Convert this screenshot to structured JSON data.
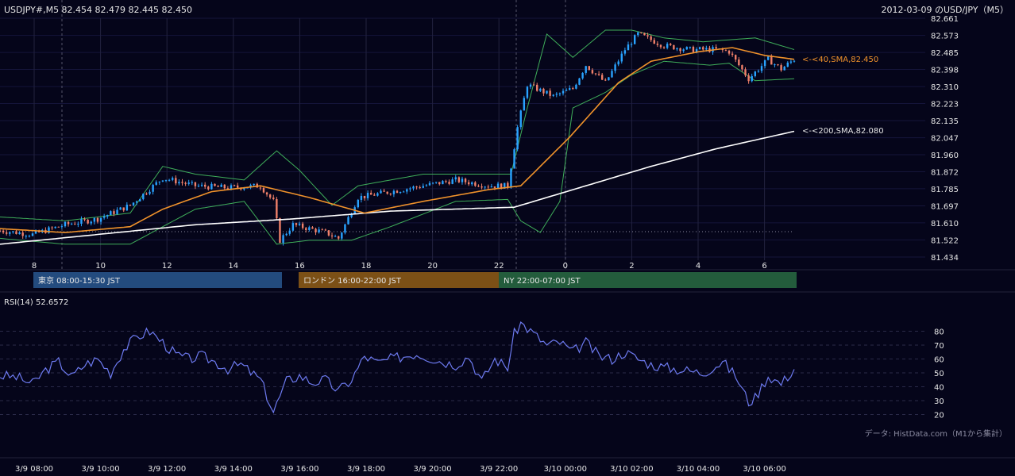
{
  "chart_data": [
    {
      "type": "candlestick",
      "header_left": "USDJPY#,M5 82.454 82.479 82.445 82.450",
      "header_right": "2012-03-09 のUSD/JPY（M5）",
      "ylim": [
        81.434,
        82.661
      ],
      "y_ticks": [
        "82.661",
        "82.573",
        "82.485",
        "82.398",
        "82.310",
        "82.223",
        "82.135",
        "82.047",
        "81.960",
        "81.872",
        "81.785",
        "81.697",
        "81.610",
        "81.522",
        "81.434"
      ],
      "x_ticks": [
        "8",
        "10",
        "12",
        "14",
        "16",
        "18",
        "20",
        "22",
        "0",
        "2",
        "4",
        "6"
      ],
      "series": [
        {
          "name": "40,SMA",
          "label": "<-<40,SMA,82.450",
          "color": "#f0922b"
        },
        {
          "name": "200,SMA",
          "label": "<-<200,SMA,82.080",
          "color": "#ffffff"
        }
      ],
      "bollinger_color": "#3fae5a",
      "candle_up_color": "#29a3ff",
      "candle_down_color": "#f0806a",
      "keypoints": {
        "price": [
          [
            0,
            81.57
          ],
          [
            10,
            81.55
          ],
          [
            20,
            81.6
          ],
          [
            30,
            81.63
          ],
          [
            40,
            81.7
          ],
          [
            50,
            81.84
          ],
          [
            60,
            81.8
          ],
          [
            70,
            81.79
          ],
          [
            80,
            81.8
          ],
          [
            84,
            81.72
          ],
          [
            86,
            81.52
          ],
          [
            90,
            81.6
          ],
          [
            100,
            81.56
          ],
          [
            104,
            81.53
          ],
          [
            110,
            81.74
          ],
          [
            120,
            81.77
          ],
          [
            130,
            81.8
          ],
          [
            140,
            81.83
          ],
          [
            150,
            81.8
          ],
          [
            156,
            81.8
          ],
          [
            159,
            82.1
          ],
          [
            162,
            82.32
          ],
          [
            170,
            82.26
          ],
          [
            176,
            82.3
          ],
          [
            180,
            82.42
          ],
          [
            186,
            82.33
          ],
          [
            192,
            82.5
          ],
          [
            196,
            82.58
          ],
          [
            204,
            82.52
          ],
          [
            212,
            82.5
          ],
          [
            220,
            82.5
          ],
          [
            224,
            82.49
          ],
          [
            230,
            82.35
          ],
          [
            236,
            82.45
          ],
          [
            240,
            82.4
          ],
          [
            244,
            82.45
          ]
        ],
        "sma40": [
          [
            0,
            81.58
          ],
          [
            20,
            81.56
          ],
          [
            40,
            81.59
          ],
          [
            50,
            81.68
          ],
          [
            65,
            81.77
          ],
          [
            80,
            81.8
          ],
          [
            95,
            81.74
          ],
          [
            112,
            81.66
          ],
          [
            130,
            81.72
          ],
          [
            150,
            81.78
          ],
          [
            160,
            81.8
          ],
          [
            175,
            82.05
          ],
          [
            190,
            82.33
          ],
          [
            200,
            82.44
          ],
          [
            215,
            82.49
          ],
          [
            225,
            82.51
          ],
          [
            235,
            82.47
          ],
          [
            244,
            82.45
          ]
        ],
        "sma200": [
          [
            0,
            81.5
          ],
          [
            30,
            81.55
          ],
          [
            60,
            81.6
          ],
          [
            90,
            81.63
          ],
          [
            120,
            81.67
          ],
          [
            158,
            81.69
          ],
          [
            180,
            81.8
          ],
          [
            200,
            81.9
          ],
          [
            220,
            81.99
          ],
          [
            244,
            82.08
          ]
        ],
        "bb_upper": [
          [
            0,
            81.64
          ],
          [
            20,
            81.62
          ],
          [
            40,
            81.66
          ],
          [
            50,
            81.9
          ],
          [
            60,
            81.86
          ],
          [
            75,
            81.83
          ],
          [
            85,
            81.98
          ],
          [
            92,
            81.88
          ],
          [
            102,
            81.7
          ],
          [
            110,
            81.8
          ],
          [
            130,
            81.86
          ],
          [
            150,
            81.86
          ],
          [
            157,
            81.86
          ],
          [
            162,
            82.2
          ],
          [
            168,
            82.58
          ],
          [
            176,
            82.46
          ],
          [
            186,
            82.6
          ],
          [
            194,
            82.6
          ],
          [
            204,
            82.56
          ],
          [
            216,
            82.54
          ],
          [
            224,
            82.55
          ],
          [
            232,
            82.56
          ],
          [
            244,
            82.5
          ]
        ],
        "bb_lower": [
          [
            0,
            81.53
          ],
          [
            20,
            81.5
          ],
          [
            40,
            81.5
          ],
          [
            60,
            81.68
          ],
          [
            75,
            81.72
          ],
          [
            85,
            81.5
          ],
          [
            95,
            81.52
          ],
          [
            108,
            81.52
          ],
          [
            120,
            81.59
          ],
          [
            140,
            81.72
          ],
          [
            156,
            81.73
          ],
          [
            160,
            81.62
          ],
          [
            166,
            81.56
          ],
          [
            172,
            81.72
          ],
          [
            176,
            82.2
          ],
          [
            186,
            82.28
          ],
          [
            194,
            82.37
          ],
          [
            204,
            82.44
          ],
          [
            218,
            82.42
          ],
          [
            224,
            82.43
          ],
          [
            232,
            82.34
          ],
          [
            244,
            82.35
          ]
        ]
      }
    },
    {
      "type": "line",
      "title": "RSI(14) 52.6572",
      "ylim": [
        10,
        90
      ],
      "y_ticks": [
        80,
        70,
        60,
        50,
        40,
        30,
        20
      ],
      "x_ticks": [
        "3/9 08:00",
        "3/9 10:00",
        "3/9 12:00",
        "3/9 14:00",
        "3/9 16:00",
        "3/9 18:00",
        "3/9 20:00",
        "3/9 22:00",
        "3/10 00:00",
        "3/10 02:00",
        "3/10 04:00",
        "3/10 06:00"
      ],
      "color": "#6d7af0",
      "keypoints": [
        [
          0,
          48
        ],
        [
          5,
          47
        ],
        [
          10,
          42
        ],
        [
          14,
          52
        ],
        [
          18,
          58
        ],
        [
          22,
          47
        ],
        [
          26,
          56
        ],
        [
          30,
          60
        ],
        [
          34,
          50
        ],
        [
          38,
          67
        ],
        [
          42,
          76
        ],
        [
          46,
          80
        ],
        [
          50,
          72
        ],
        [
          54,
          63
        ],
        [
          58,
          60
        ],
        [
          62,
          62
        ],
        [
          66,
          58
        ],
        [
          70,
          53
        ],
        [
          74,
          56
        ],
        [
          80,
          45
        ],
        [
          84,
          22
        ],
        [
          88,
          44
        ],
        [
          92,
          48
        ],
        [
          96,
          43
        ],
        [
          100,
          45
        ],
        [
          104,
          37
        ],
        [
          108,
          45
        ],
        [
          112,
          62
        ],
        [
          116,
          57
        ],
        [
          120,
          60
        ],
        [
          124,
          62
        ],
        [
          128,
          64
        ],
        [
          132,
          61
        ],
        [
          136,
          58
        ],
        [
          140,
          56
        ],
        [
          144,
          62
        ],
        [
          148,
          44
        ],
        [
          152,
          60
        ],
        [
          156,
          54
        ],
        [
          158,
          78
        ],
        [
          160,
          86
        ],
        [
          164,
          78
        ],
        [
          168,
          70
        ],
        [
          172,
          72
        ],
        [
          176,
          65
        ],
        [
          180,
          72
        ],
        [
          184,
          62
        ],
        [
          188,
          60
        ],
        [
          192,
          65
        ],
        [
          196,
          60
        ],
        [
          200,
          56
        ],
        [
          204,
          54
        ],
        [
          210,
          52
        ],
        [
          216,
          50
        ],
        [
          222,
          58
        ],
        [
          226,
          48
        ],
        [
          230,
          29
        ],
        [
          232,
          32
        ],
        [
          236,
          48
        ],
        [
          240,
          42
        ],
        [
          244,
          53
        ]
      ]
    }
  ],
  "sessions": [
    {
      "label": "東京 08:00-15:30 JST",
      "color": "#234b7e"
    },
    {
      "label": "ロンドン 16:00-22:00 JST",
      "color": "#7c5016"
    },
    {
      "label": "NY 22:00-07:00 JST",
      "color": "#235c3c"
    }
  ],
  "credit": "データ: HistData.com（M1から集計）"
}
